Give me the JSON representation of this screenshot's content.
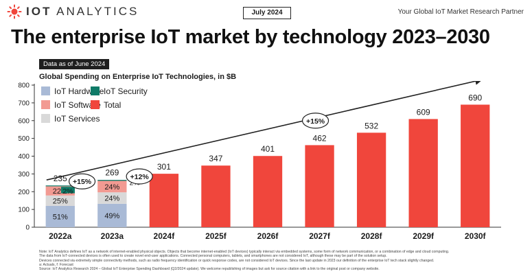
{
  "header": {
    "brand_prefix": "IOT",
    "brand_suffix": "ANALYTICS",
    "date_badge": "July 2024",
    "tagline": "Your Global IoT Market Research Partner",
    "headline": "The enterprise IoT market by technology 2023–2030",
    "as_of": "Data as of June 2024",
    "subtitle": "Global Spending on Enterprise IoT Technologies, in $B"
  },
  "colors": {
    "hardware": "#a9bad6",
    "security": "#0f7b68",
    "software": "#f29a92",
    "services": "#d9d9d9",
    "total": "#f0463c",
    "text": "#1a1a1a"
  },
  "chart_data": {
    "type": "bar",
    "ylim": [
      0,
      800
    ],
    "yticks": [
      0,
      100,
      200,
      300,
      400,
      500,
      600,
      700,
      800
    ],
    "categories": [
      "2022a",
      "2023a",
      "2024f",
      "2025f",
      "2026f",
      "2027f",
      "2028f",
      "2029f",
      "2030f"
    ],
    "totals": [
      235,
      269,
      301,
      347,
      401,
      462,
      532,
      609,
      690
    ],
    "stacked": [
      {
        "category": "2022a",
        "segments": [
          {
            "series": "IoT Hardware",
            "share": 51,
            "label": "51%"
          },
          {
            "series": "IoT Services",
            "share": 25,
            "label": "25%"
          },
          {
            "series": "IoT Software",
            "share": 22,
            "label": "22%"
          },
          {
            "series": "IoT Security",
            "share": 2,
            "label": "2%"
          }
        ]
      },
      {
        "category": "2023a",
        "segments": [
          {
            "series": "IoT Hardware",
            "share": 49,
            "label": "49%"
          },
          {
            "series": "IoT Services",
            "share": 24,
            "label": "24%"
          },
          {
            "series": "IoT Software",
            "share": 24,
            "label": "24%"
          },
          {
            "series": "IoT Security",
            "share": 2,
            "label": "2%"
          }
        ]
      }
    ],
    "legend": [
      {
        "name": "IoT Hardware",
        "color_key": "hardware"
      },
      {
        "name": "IoT Security",
        "color_key": "security"
      },
      {
        "name": "IoT Software",
        "color_key": "software"
      },
      {
        "name": "Total",
        "color_key": "total"
      },
      {
        "name": "IoT Services",
        "color_key": "services"
      }
    ],
    "growth_annotations": [
      {
        "label": "+15%",
        "from": "2022a",
        "to": "2023a"
      },
      {
        "label": "+12%",
        "from": "2023a",
        "to": "2024f"
      },
      {
        "label": "+15%",
        "from": "2024f",
        "to": "2030f"
      }
    ]
  },
  "notes": [
    "Note: IoT Analytics defines IoT as a network of internet-enabled physical objects. Objects that become internet-enabled (IoT devices) typically interact via embedded systems, some form of network communication, or a combination of edge and cloud computing.",
    "The data from IoT-connected devices is often used to create novel end-user applications. Connected personal computers, tablets, and smartphones are not considered IoT, although these may be part of the solution setup.",
    "Devices connected via extremely simple connectivity methods, such as radio frequency identification or quick response codes, are not considered IoT devices. Since the last update in 2023 our definition of the enterprise IoT tech stack slightly changed.",
    "a: Actuals, f: Forecast",
    "Source: IoT Analytics Research 2024 – Global IoT Enterprise Spending Dashboard (Q2/2024 update). We welcome republishing of images but ask for source citation with a link to the original post or company website."
  ]
}
